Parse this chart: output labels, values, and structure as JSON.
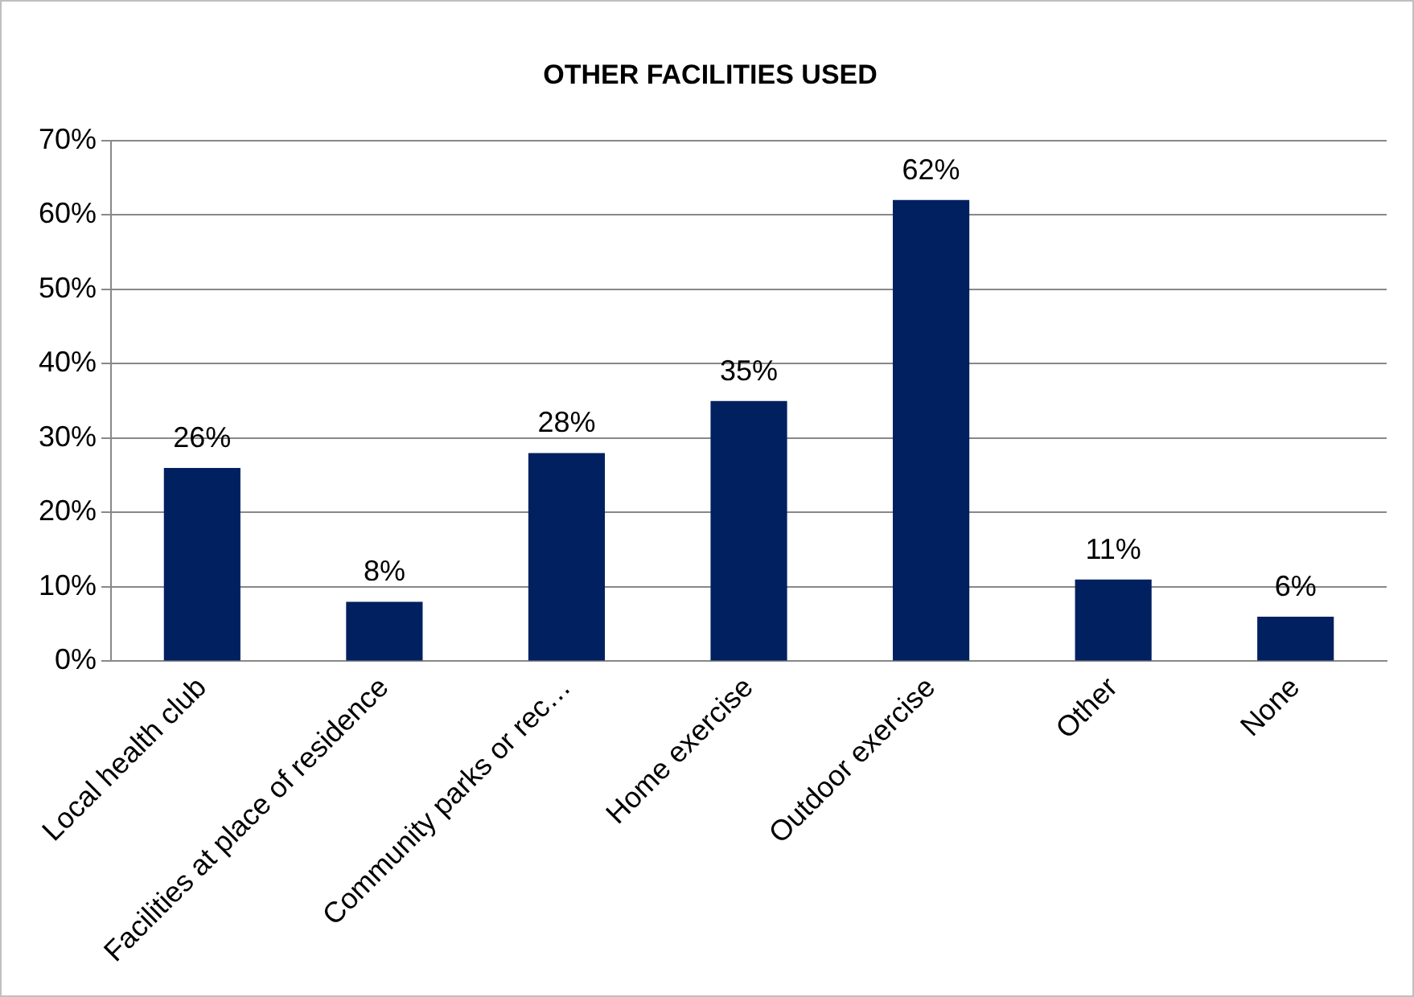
{
  "chart_data": {
    "type": "bar",
    "title": "OTHER FACILITIES USED",
    "categories": [
      "Local health club",
      "Facilities at place of residence",
      "Community parks or rec…",
      "Home exercise",
      "Outdoor exercise",
      "Other",
      "None"
    ],
    "values": [
      26,
      8,
      28,
      35,
      62,
      11,
      6
    ],
    "value_labels": [
      "26%",
      "8%",
      "28%",
      "35%",
      "62%",
      "11%",
      "6%"
    ],
    "color": "#002060",
    "ylim": [
      0,
      70
    ],
    "yticks": [
      {
        "value": 0,
        "label": "0%"
      },
      {
        "value": 10,
        "label": "10%"
      },
      {
        "value": 20,
        "label": "20%"
      },
      {
        "value": 30,
        "label": "30%"
      },
      {
        "value": 40,
        "label": "40%"
      },
      {
        "value": 50,
        "label": "50%"
      },
      {
        "value": 60,
        "label": "60%"
      },
      {
        "value": 70,
        "label": "70%"
      }
    ],
    "grid": "y",
    "legend": false
  }
}
